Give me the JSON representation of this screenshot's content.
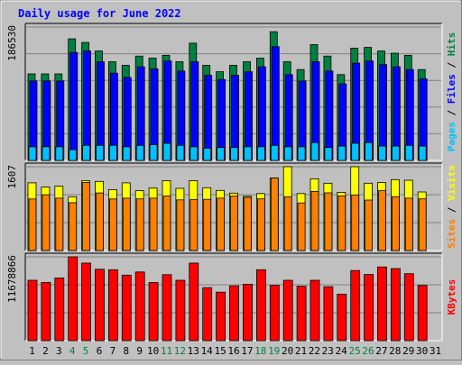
{
  "chart_data": {
    "type": "bar",
    "title": "Daily usage for June 2022",
    "days": [
      1,
      2,
      3,
      4,
      5,
      6,
      7,
      8,
      9,
      10,
      11,
      12,
      13,
      14,
      15,
      16,
      17,
      18,
      19,
      20,
      21,
      22,
      23,
      24,
      25,
      26,
      27,
      28,
      29,
      30,
      31
    ],
    "weekend_days": [
      4,
      5,
      11,
      12,
      18,
      19,
      25,
      26
    ],
    "panels": [
      {
        "id": "hits",
        "ylabel_parts": [
          "Pages",
          "Files",
          "Hits"
        ],
        "max_label": "186530",
        "ymax": 186530,
        "series": [
          {
            "name": "Hits",
            "color": "#008040",
            "values": [
              121000,
              121000,
              121000,
              170000,
              165000,
              153000,
              138000,
              133000,
              146000,
              143000,
              147000,
              138000,
              164000,
              133000,
              124000,
              133000,
              138000,
              143000,
              180000,
              138000,
              127000,
              162000,
              146000,
              120000,
              157000,
              158000,
              153000,
              150000,
              147000,
              127000,
              0
            ]
          },
          {
            "name": "Files",
            "color": "#0000ff",
            "values": [
              111000,
              111000,
              111000,
              151000,
              153000,
              138000,
              122000,
              116000,
              131000,
              128000,
              139000,
              125000,
              138000,
              119000,
              113000,
              119000,
              124000,
              131000,
              159000,
              120000,
              111000,
              138000,
              125000,
              107000,
              136000,
              139000,
              134000,
              131000,
              127000,
              114000,
              0
            ]
          },
          {
            "name": "Pages",
            "color": "#00c0ff",
            "values": [
              19000,
              19000,
              19000,
              15000,
              21000,
              21000,
              21000,
              19000,
              21000,
              22000,
              24000,
              21000,
              19000,
              17000,
              18000,
              18000,
              19000,
              19000,
              21000,
              19000,
              19000,
              25000,
              18000,
              20000,
              24000,
              25000,
              20000,
              20000,
              21000,
              20000,
              0
            ],
            "values_note": ""
          }
        ]
      },
      {
        "id": "visits",
        "ylabel_parts": [
          "Sites",
          "Visits"
        ],
        "max_label": "1607",
        "ymax": 1607,
        "series": [
          {
            "name": "Visits",
            "color": "#ffff00",
            "values": [
              1297,
              1217,
              1234,
              1031,
              1339,
              1325,
              1168,
              1297,
              1148,
              1197,
              1339,
              1192,
              1339,
              1204,
              1153,
              1100,
              1041,
              1092,
              1390,
              1607,
              1092,
              1375,
              1290,
              1117,
              1607,
              1290,
              1305,
              1360,
              1348,
              1124,
              0
            ]
          },
          {
            "name": "Sites",
            "color": "#ff8000",
            "values": [
              989,
              1069,
              1004,
              918,
              1307,
              1104,
              989,
              1004,
              990,
              1004,
              1046,
              971,
              975,
              982,
              1004,
              1046,
              1020,
              990,
              1390,
              1031,
              912,
              1134,
              1106,
              1049,
              1066,
              967,
              1148,
              1034,
              1004,
              990,
              0
            ]
          }
        ]
      },
      {
        "id": "kbytes",
        "ylabel_parts": [
          "KBytes"
        ],
        "max_label": "11678866",
        "ymax": 11678866,
        "series": [
          {
            "name": "KBytes",
            "color": "#ff0000",
            "values": [
              8420000,
              8110000,
              8730000,
              11678866,
              10810000,
              9940000,
              9880000,
              9130000,
              9570000,
              8100000,
              9190000,
              8420000,
              10810000,
              7380000,
              6760000,
              7640000,
              7860000,
              9880000,
              7700000,
              8420000,
              7590000,
              8420000,
              7520000,
              6480000,
              9770000,
              9220000,
              10270000,
              10050000,
              9330000,
              7700000,
              0
            ]
          }
        ]
      }
    ]
  }
}
